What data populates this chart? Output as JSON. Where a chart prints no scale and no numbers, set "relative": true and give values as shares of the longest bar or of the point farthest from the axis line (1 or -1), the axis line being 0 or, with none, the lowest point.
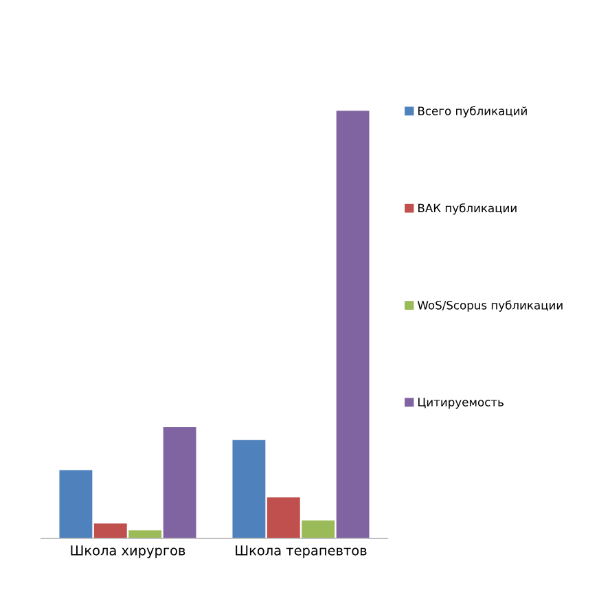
{
  "chart_data": {
    "type": "bar",
    "relative": true,
    "categories": [
      "Школа хирургов",
      "Школа терапевтов"
    ],
    "series": [
      {
        "name": "Всего публикаций",
        "color": "#4f81bd",
        "values": [
          0.16,
          0.23
        ]
      },
      {
        "name": "ВАК публикации",
        "color": "#c0504d",
        "values": [
          0.035,
          0.096
        ]
      },
      {
        "name": "WoS/Scopus публикации",
        "color": "#9bbb59",
        "values": [
          0.019,
          0.042
        ]
      },
      {
        "name": "Цитируемость",
        "color": "#8064a2",
        "values": [
          0.26,
          1
        ]
      }
    ],
    "legend": "right"
  }
}
